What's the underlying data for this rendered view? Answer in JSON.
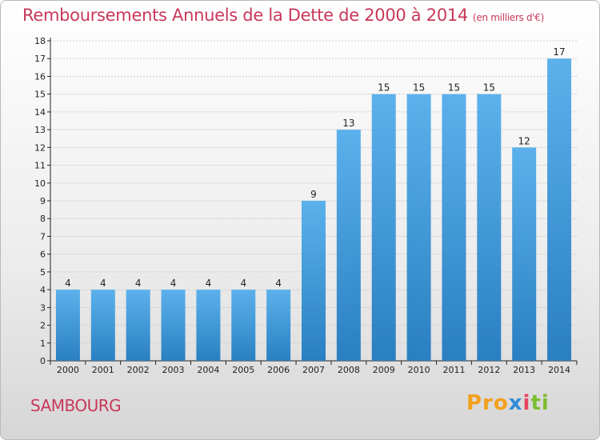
{
  "header": {
    "title": "Remboursements Annuels de la Dette de 2000 à 2014",
    "unit": "(en milliers d'€)"
  },
  "footer": {
    "commune": "SAMBOURG",
    "logo_parts": [
      "Pro",
      "x",
      "i",
      "ti"
    ]
  },
  "colors": {
    "title": "#c8385a",
    "bar_light": "#5cb1ec",
    "bar_dark": "#2a7fc1",
    "axis": "#222222",
    "grid": "#c9c9c9"
  },
  "chart_data": {
    "type": "bar",
    "title": "Remboursements Annuels de la Dette de 2000 à 2014",
    "xlabel": "",
    "ylabel": "",
    "categories": [
      "2000",
      "2001",
      "2002",
      "2003",
      "2004",
      "2005",
      "2006",
      "2007",
      "2008",
      "2009",
      "2010",
      "2011",
      "2012",
      "2013",
      "2014"
    ],
    "values": [
      4,
      4,
      4,
      4,
      4,
      4,
      4,
      9,
      13,
      15,
      15,
      15,
      15,
      12,
      17
    ],
    "ylim": [
      0,
      18
    ],
    "yticks": [
      "0",
      "1",
      "2",
      "3",
      "4",
      "5",
      "6",
      "7",
      "8",
      "9",
      "10",
      "11",
      "12",
      "13",
      "14",
      "15",
      "16",
      "17",
      "18"
    ],
    "grid": true,
    "data_labels": true
  }
}
